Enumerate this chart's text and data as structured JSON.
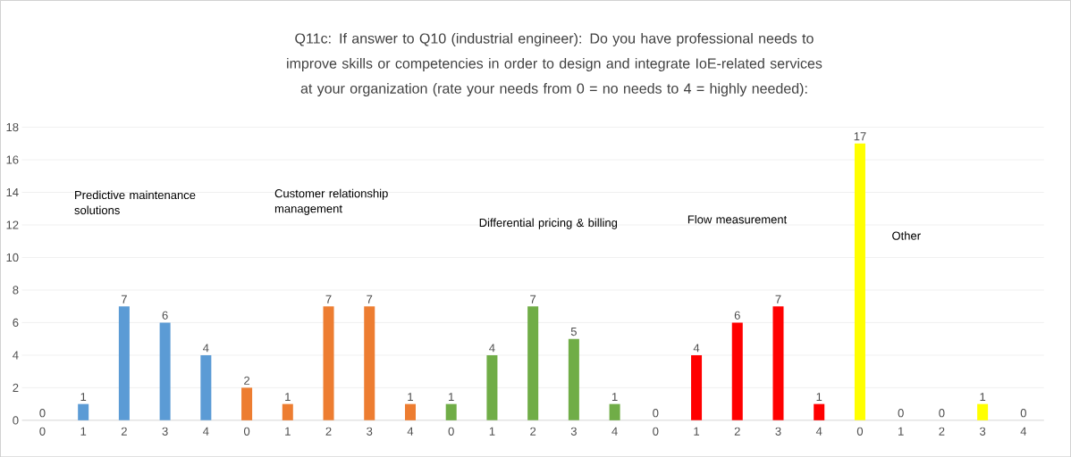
{
  "chart_data": {
    "type": "bar",
    "title": "Q11c: If answer to Q10 (industrial engineer): Do you have professional needs to improve skills or competencies in order to design and integrate IoE-related services at your organization (rate your needs from 0 = no needs to 4 = highly needed):",
    "categories": [
      "0",
      "1",
      "2",
      "3",
      "4",
      "0",
      "1",
      "2",
      "3",
      "4",
      "0",
      "1",
      "2",
      "3",
      "4",
      "0",
      "1",
      "2",
      "3",
      "4",
      "0",
      "1",
      "2",
      "3",
      "4"
    ],
    "values": [
      0,
      1,
      7,
      6,
      4,
      2,
      1,
      7,
      7,
      1,
      1,
      4,
      7,
      5,
      1,
      0,
      4,
      6,
      7,
      1,
      17,
      0,
      0,
      1,
      0
    ],
    "colors": [
      "#5b9bd5",
      "#5b9bd5",
      "#5b9bd5",
      "#5b9bd5",
      "#5b9bd5",
      "#ed7d31",
      "#ed7d31",
      "#ed7d31",
      "#ed7d31",
      "#ed7d31",
      "#70ad47",
      "#70ad47",
      "#70ad47",
      "#70ad47",
      "#70ad47",
      "#ff0000",
      "#ff0000",
      "#ff0000",
      "#ff0000",
      "#ff0000",
      "#ffff00",
      "#ffff00",
      "#ffff00",
      "#ffff00",
      "#ffff00"
    ],
    "annotations": [
      "Predictive maintenance solutions",
      "Customer relationship management",
      "Differential pricing & billing",
      "Flow measurement",
      "Other"
    ],
    "ylim": [
      0,
      18
    ],
    "yticks": [
      0,
      2,
      4,
      6,
      8,
      10,
      12,
      14,
      16,
      18
    ],
    "grid": "y",
    "data_labels": true
  }
}
